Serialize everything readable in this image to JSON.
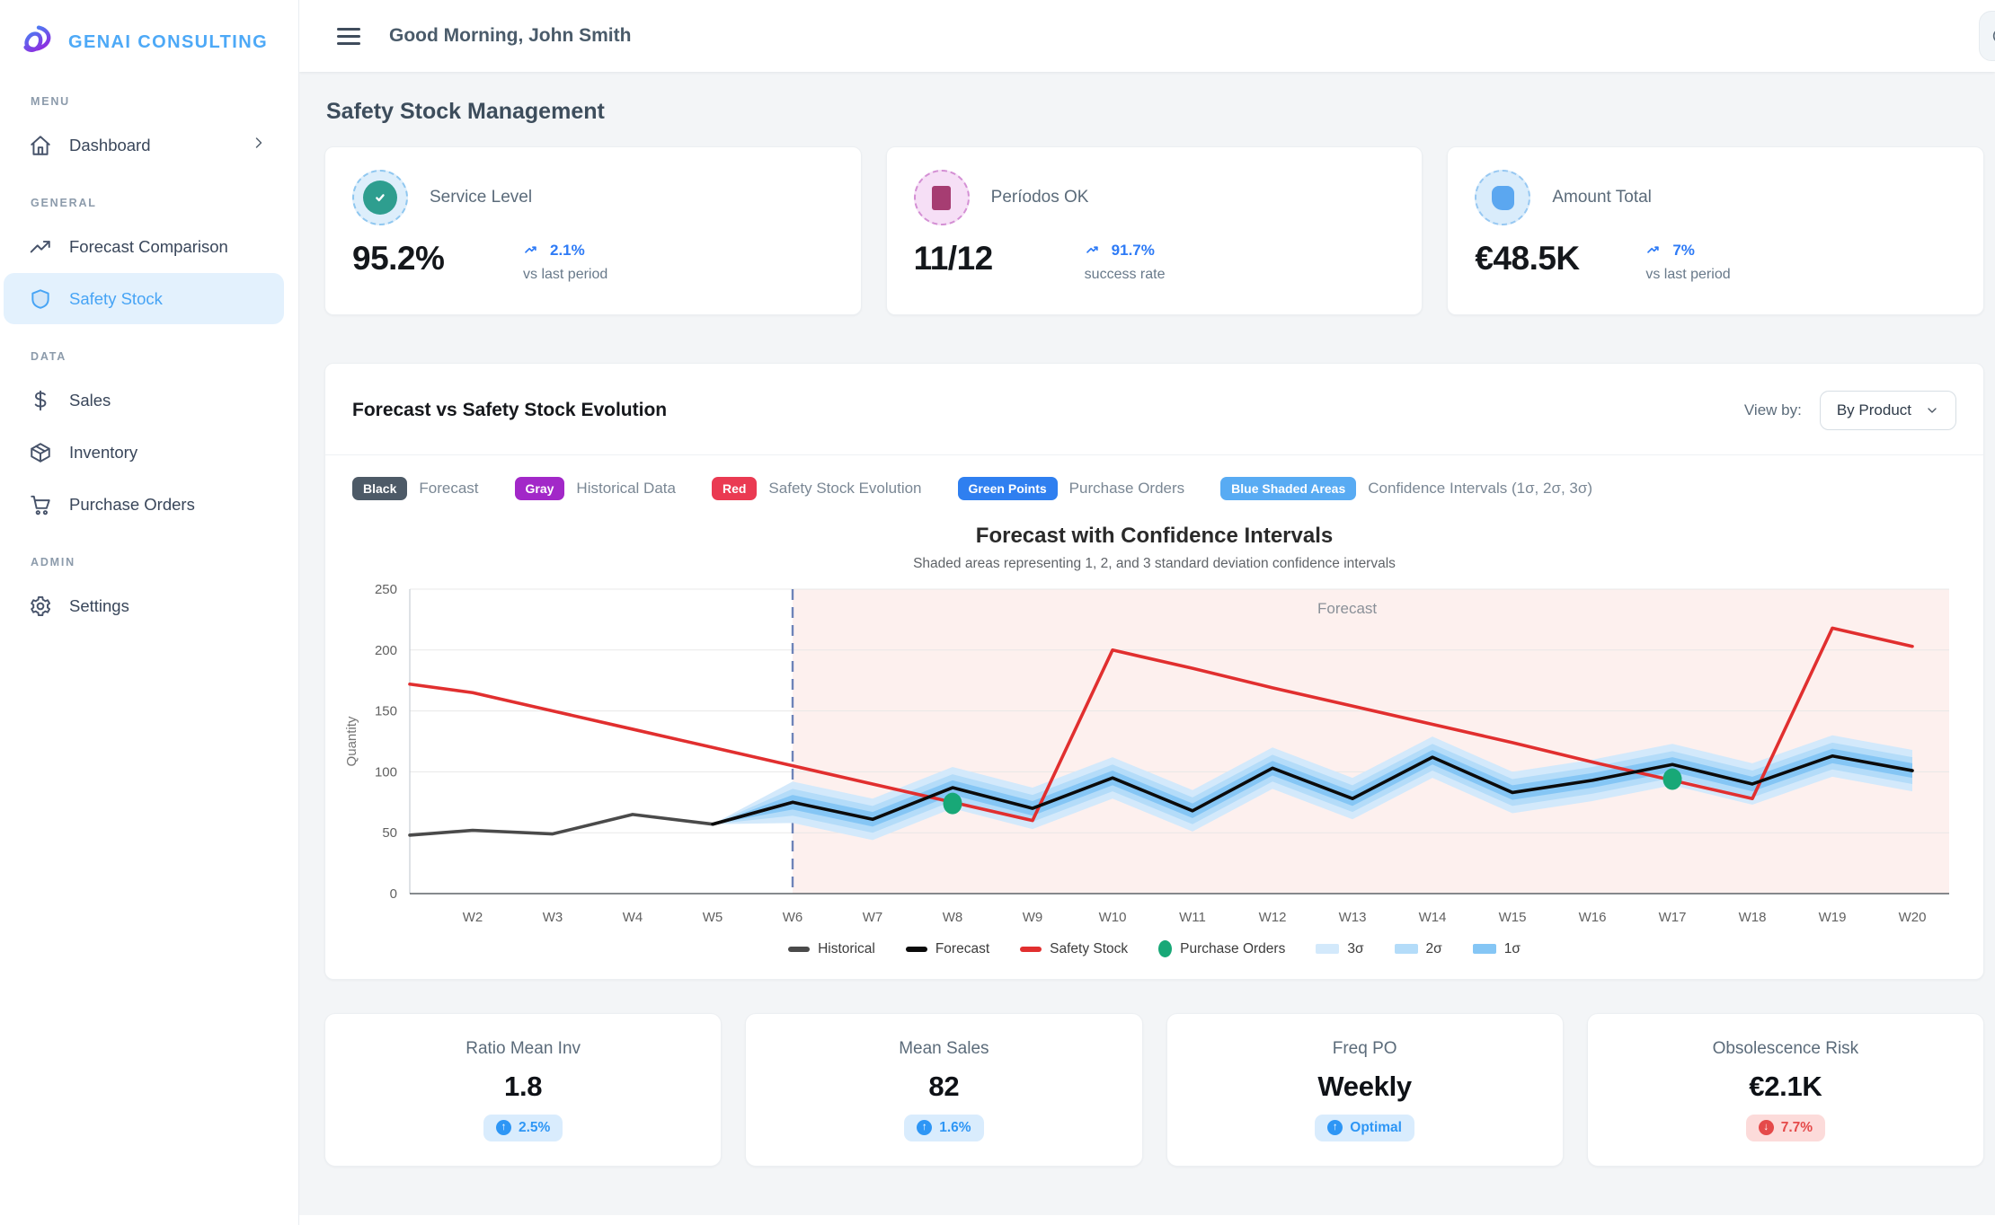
{
  "brand": {
    "name": "GENAI CONSULTING",
    "logo_icon": "knot-logo-icon",
    "accent": "#4da9f7"
  },
  "header": {
    "greeting": "Good Morning, John Smith"
  },
  "page": {
    "title": "Safety Stock Management"
  },
  "sidebar": {
    "sections": [
      {
        "label": "MENU",
        "items": [
          {
            "label": "Dashboard",
            "icon": "home-icon",
            "chevron": true,
            "active": false
          }
        ]
      },
      {
        "label": "GENERAL",
        "items": [
          {
            "label": "Forecast Comparison",
            "icon": "trending-up-icon",
            "active": false
          },
          {
            "label": "Safety Stock",
            "icon": "shield-icon",
            "active": true
          }
        ]
      },
      {
        "label": "DATA",
        "items": [
          {
            "label": "Sales",
            "icon": "dollar-icon",
            "active": false
          },
          {
            "label": "Inventory",
            "icon": "package-icon",
            "active": false
          },
          {
            "label": "Purchase Orders",
            "icon": "cart-icon",
            "active": false
          }
        ]
      },
      {
        "label": "ADMIN",
        "items": [
          {
            "label": "Settings",
            "icon": "gear-icon",
            "active": false
          }
        ]
      }
    ]
  },
  "kpis": [
    {
      "label": "Service Level",
      "value": "95.2%",
      "trend": "2.1%",
      "trend_caption": "vs last period",
      "icon": "check-circle-icon",
      "kind": "check",
      "inner_color": "#2e9e8f",
      "ring_bg": "#ddeefb",
      "ring_border": "#8fc7f0"
    },
    {
      "label": "Períodos OK",
      "value": "11/12",
      "trend": "91.7%",
      "trend_caption": "success rate",
      "icon": "square-icon",
      "kind": "square",
      "inner_color": "#a63d72",
      "ring_bg": "#f6dff6",
      "ring_border": "#d48fd4"
    },
    {
      "label": "Amount Total",
      "value": "€48.5K",
      "trend": "7%",
      "trend_caption": "vs last period",
      "icon": "rounded-square-icon",
      "kind": "blob",
      "inner_color": "#5ba7f0",
      "ring_bg": "#d9ecfb",
      "ring_border": "#97c8f2"
    }
  ],
  "chart_card": {
    "title": "Forecast vs Safety Stock Evolution",
    "view_by_label": "View by:",
    "view_by_value": "By Product",
    "legend_badges": [
      {
        "badge": "Black",
        "color": "#4d5a67",
        "label": "Forecast"
      },
      {
        "badge": "Gray",
        "color": "#a228c8",
        "label": "Historical Data"
      },
      {
        "badge": "Red",
        "color": "#ea3a52",
        "label": "Safety Stock Evolution"
      },
      {
        "badge": "Green Points",
        "color": "#2f7ff0",
        "label": "Purchase Orders"
      },
      {
        "badge": "Blue Shaded Areas",
        "color": "#58abf3",
        "label": "Confidence Intervals (1σ, 2σ, 3σ)"
      }
    ]
  },
  "chart_data": {
    "type": "line",
    "title": "Forecast with Confidence Intervals",
    "subtitle": "Shaded areas representing 1, 2, and 3 standard deviation confidence intervals",
    "ylabel": "Quantity",
    "ylim": [
      0,
      250
    ],
    "yticks": [
      0,
      50,
      100,
      150,
      200,
      250
    ],
    "categories": [
      "W2",
      "W3",
      "W4",
      "W5",
      "W6",
      "W7",
      "W8",
      "W9",
      "W10",
      "W11",
      "W12",
      "W13",
      "W14",
      "W15",
      "W16",
      "W17",
      "W18",
      "W19",
      "W20"
    ],
    "grid": true,
    "forecast_region": {
      "start_category": "W6",
      "label": "Forecast",
      "fill": "#fdf0ee",
      "divider_color": "#6d83b8"
    },
    "series": [
      {
        "name": "Historical",
        "color": "#4a4a4a",
        "edge_start": 48,
        "values": [
          52,
          49,
          65,
          57,
          75,
          null,
          null,
          null,
          null,
          null,
          null,
          null,
          null,
          null,
          null,
          null,
          null,
          null,
          null
        ]
      },
      {
        "name": "Forecast",
        "color": "#0b0b0b",
        "edge_start": null,
        "values": [
          null,
          null,
          null,
          57,
          75,
          61,
          87,
          70,
          95,
          68,
          103,
          78,
          112,
          83,
          93,
          106,
          90,
          113,
          101
        ]
      },
      {
        "name": "Safety Stock",
        "color": "#e12f2f",
        "edge_start": 172,
        "values": [
          165,
          150,
          135,
          120,
          105,
          90,
          75,
          60,
          200,
          185,
          169,
          154,
          139,
          124,
          108,
          93,
          78,
          218,
          203
        ]
      }
    ],
    "confidence_bands": {
      "start_category": "W5",
      "sigmas": [
        {
          "name": "3σ",
          "halfwidth": 17,
          "color": "#d3e9fb"
        },
        {
          "name": "2σ",
          "halfwidth": 11,
          "color": "#b4dcf9"
        },
        {
          "name": "1σ",
          "halfwidth": 6,
          "color": "#85c6f5"
        }
      ]
    },
    "purchase_orders": {
      "name": "Purchase Orders",
      "color": "#18a877",
      "points": [
        {
          "x": "W8",
          "y": 74
        },
        {
          "x": "W17",
          "y": 94
        }
      ]
    },
    "legend_position": "bottom",
    "bottom_legend": [
      {
        "label": "Historical",
        "swatch": "line",
        "color": "#4a4a4a"
      },
      {
        "label": "Forecast",
        "swatch": "line",
        "color": "#0b0b0b"
      },
      {
        "label": "Safety Stock",
        "swatch": "line",
        "color": "#e12f2f"
      },
      {
        "label": "Purchase Orders",
        "swatch": "dot",
        "color": "#18a877"
      },
      {
        "label": "3σ",
        "swatch": "band",
        "color": "#d3e9fb"
      },
      {
        "label": "2σ",
        "swatch": "band",
        "color": "#b4dcf9"
      },
      {
        "label": "1σ",
        "swatch": "band",
        "color": "#85c6f5"
      }
    ]
  },
  "stats": [
    {
      "label": "Ratio Mean Inv",
      "value": "1.8",
      "badge": "2.5%",
      "badge_type": "up"
    },
    {
      "label": "Mean Sales",
      "value": "82",
      "badge": "1.6%",
      "badge_type": "up"
    },
    {
      "label": "Freq PO",
      "value": "Weekly",
      "badge": "Optimal",
      "badge_type": "up"
    },
    {
      "label": "Obsolescence Risk",
      "value": "€2.1K",
      "badge": "7.7%",
      "badge_type": "down"
    }
  ]
}
